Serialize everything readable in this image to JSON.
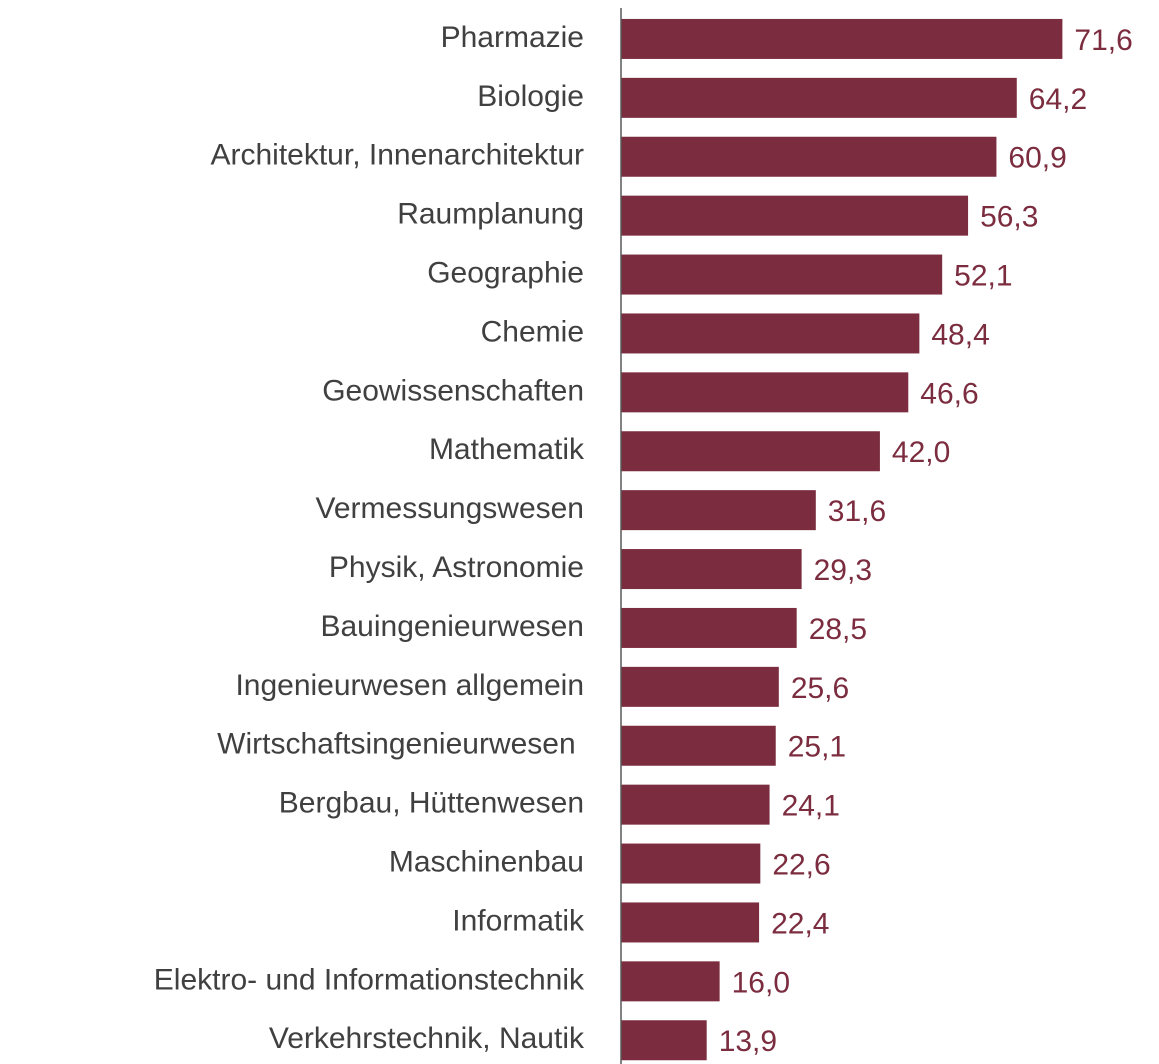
{
  "chart_data": {
    "type": "hbar",
    "categories": [
      "Pharmazie",
      "Biologie",
      "Architektur, Innenarchitektur",
      "Raumplanung",
      "Geographie",
      "Chemie",
      "Geowissenschaften",
      "Mathematik",
      "Vermessungswesen",
      "Physik, Astronomie",
      "Bauingenieurwesen",
      "Ingenieurwesen allgemein",
      "Wirtschaftsingenieurwesen ",
      "Bergbau, Hüttenwesen",
      "Maschinenbau",
      "Informatik",
      "Elektro- und Informationstechnik",
      "Verkehrstechnik, Nautik"
    ],
    "values": [
      71.6,
      64.2,
      60.9,
      56.3,
      52.1,
      48.4,
      46.6,
      42.0,
      31.6,
      29.3,
      28.5,
      25.6,
      25.1,
      24.1,
      22.6,
      22.4,
      16.0,
      13.9
    ],
    "value_labels": [
      "71,6",
      "64,2",
      "60,9",
      "56,3",
      "52,1",
      "48,4",
      "46,6",
      "42,0",
      "31,6",
      "29,3",
      "28,5",
      "25,6",
      "25,1",
      "24,1",
      "22,6",
      "22,4",
      "16,0",
      "13,9"
    ],
    "color": "#7b2d3f",
    "xlim": [
      0,
      85
    ]
  }
}
